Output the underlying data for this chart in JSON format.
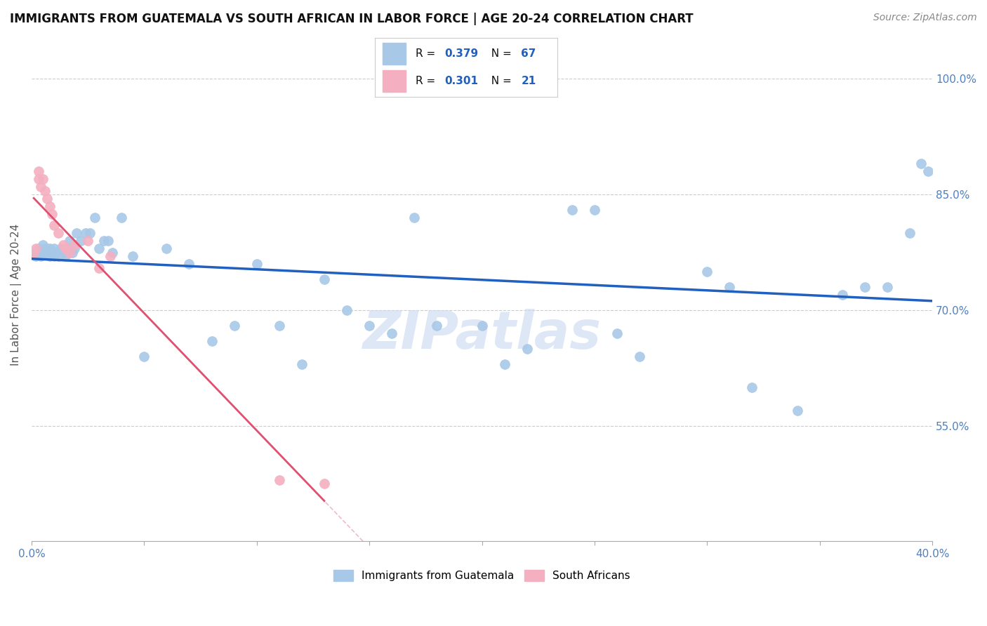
{
  "title": "IMMIGRANTS FROM GUATEMALA VS SOUTH AFRICAN IN LABOR FORCE | AGE 20-24 CORRELATION CHART",
  "source": "Source: ZipAtlas.com",
  "ylabel": "In Labor Force | Age 20-24",
  "xlim": [
    0.0,
    0.4
  ],
  "ylim": [
    0.4,
    1.04
  ],
  "xticks": [
    0.0,
    0.05,
    0.1,
    0.15,
    0.2,
    0.25,
    0.3,
    0.35,
    0.4
  ],
  "yticks_right": [
    0.55,
    0.7,
    0.85,
    1.0
  ],
  "ytick_labels_right": [
    "55.0%",
    "70.0%",
    "85.0%",
    "100.0%"
  ],
  "blue_color": "#a8c8e8",
  "pink_color": "#f4b0c0",
  "trend_blue_color": "#2060c0",
  "trend_pink_color": "#e05070",
  "trend_grey_color": "#ccaaaa",
  "R_blue": 0.379,
  "N_blue": 67,
  "R_pink": 0.301,
  "N_pink": 21,
  "watermark_color": "#c8d8f0",
  "blue_x": [
    0.001,
    0.002,
    0.003,
    0.003,
    0.004,
    0.005,
    0.005,
    0.006,
    0.006,
    0.007,
    0.007,
    0.008,
    0.008,
    0.009,
    0.01,
    0.01,
    0.011,
    0.012,
    0.013,
    0.014,
    0.015,
    0.016,
    0.017,
    0.018,
    0.019,
    0.02,
    0.022,
    0.024,
    0.026,
    0.028,
    0.03,
    0.032,
    0.034,
    0.036,
    0.04,
    0.045,
    0.05,
    0.06,
    0.07,
    0.08,
    0.09,
    0.1,
    0.11,
    0.12,
    0.13,
    0.14,
    0.15,
    0.16,
    0.17,
    0.18,
    0.2,
    0.21,
    0.22,
    0.24,
    0.25,
    0.26,
    0.27,
    0.3,
    0.31,
    0.32,
    0.34,
    0.36,
    0.37,
    0.38,
    0.39,
    0.395,
    0.398
  ],
  "blue_y": [
    0.775,
    0.77,
    0.78,
    0.775,
    0.77,
    0.775,
    0.785,
    0.78,
    0.775,
    0.78,
    0.775,
    0.77,
    0.78,
    0.775,
    0.77,
    0.78,
    0.775,
    0.77,
    0.78,
    0.775,
    0.77,
    0.78,
    0.79,
    0.775,
    0.78,
    0.8,
    0.79,
    0.8,
    0.8,
    0.82,
    0.78,
    0.79,
    0.79,
    0.775,
    0.82,
    0.77,
    0.64,
    0.78,
    0.76,
    0.66,
    0.68,
    0.76,
    0.68,
    0.63,
    0.74,
    0.7,
    0.68,
    0.67,
    0.82,
    0.68,
    0.68,
    0.63,
    0.65,
    0.83,
    0.83,
    0.67,
    0.64,
    0.75,
    0.73,
    0.6,
    0.57,
    0.72,
    0.73,
    0.73,
    0.8,
    0.89,
    0.88
  ],
  "pink_x": [
    0.001,
    0.002,
    0.003,
    0.003,
    0.004,
    0.005,
    0.006,
    0.007,
    0.008,
    0.009,
    0.01,
    0.012,
    0.014,
    0.015,
    0.017,
    0.019,
    0.025,
    0.03,
    0.035,
    0.11,
    0.13
  ],
  "pink_y": [
    0.775,
    0.78,
    0.87,
    0.88,
    0.86,
    0.87,
    0.855,
    0.845,
    0.835,
    0.825,
    0.81,
    0.8,
    0.785,
    0.78,
    0.775,
    0.785,
    0.79,
    0.755,
    0.77,
    0.48,
    0.475
  ]
}
